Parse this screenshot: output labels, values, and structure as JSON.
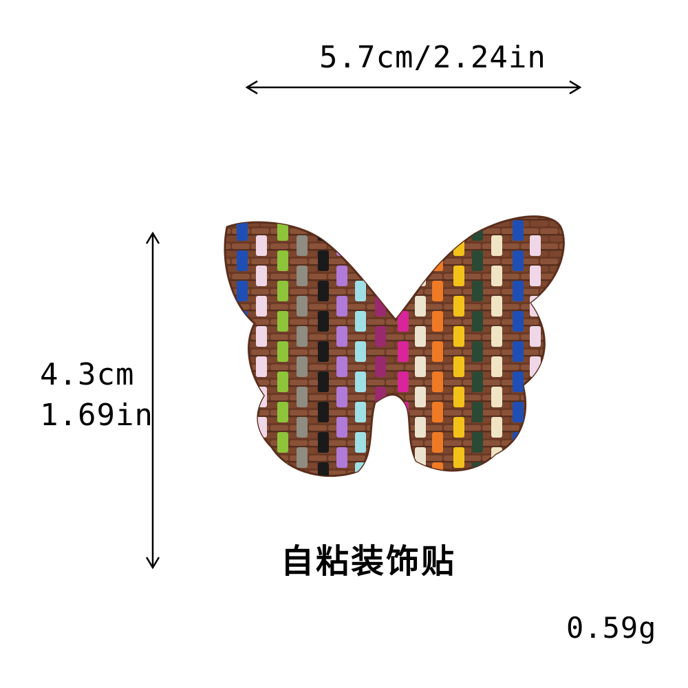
{
  "dimensions": {
    "width_label": "5.7cm/2.24in",
    "height_metric": "4.3cm",
    "height_imperial": "1.69in"
  },
  "caption": "自粘装饰贴",
  "weight_label": "0.59g",
  "product": {
    "icon": "woven-butterfly-icon",
    "base_color": "#6b3a26",
    "stripe_colors": [
      "#1f4fb5",
      "#efd7e8",
      "#8dc43a",
      "#8f8c82",
      "#1a1a1a",
      "#b07ad8",
      "#9ee0e5",
      "#9a2a6e",
      "#d8259a",
      "#ebe3cf",
      "#ef7a26",
      "#f2c21a",
      "#2a4a36",
      "#f0e4c4"
    ]
  }
}
